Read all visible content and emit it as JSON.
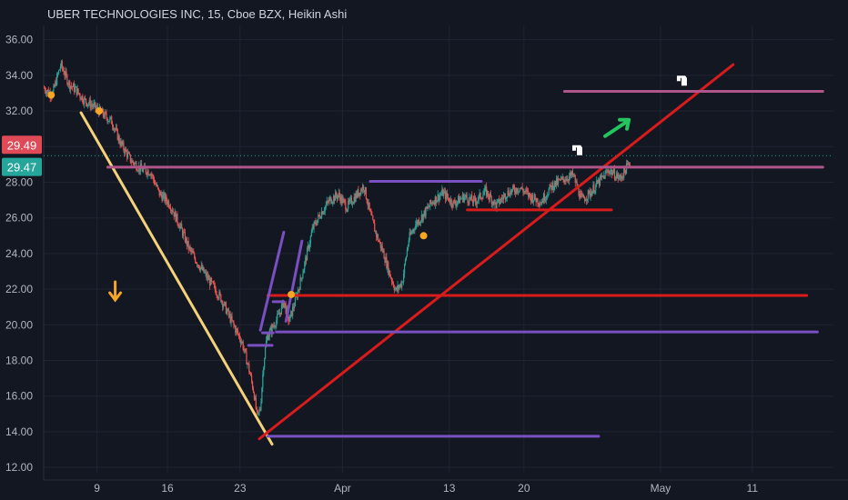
{
  "chart_data": {
    "type": "candlestick",
    "title": "UBER TECHNOLOGIES INC, 15, Cboe BZX, Heikin Ashi",
    "y_ticks": [
      "12.00",
      "14.00",
      "16.00",
      "18.00",
      "20.00",
      "22.00",
      "24.00",
      "26.00",
      "28.00",
      "30.00",
      "32.00",
      "34.00",
      "36.00"
    ],
    "x_ticks": [
      "9",
      "16",
      "23",
      "Apr",
      "13",
      "20",
      "May",
      "11"
    ],
    "ylim": [
      11.7,
      36.8
    ],
    "price_labels": [
      {
        "text": "29.49",
        "value": 29.49,
        "color": "#e04a57"
      },
      {
        "text": "29.47",
        "value": 29.47,
        "color": "#26a69a"
      }
    ],
    "price_path": [
      {
        "t": 0.0,
        "v": 33.3
      },
      {
        "t": 0.8,
        "v": 32.9
      },
      {
        "t": 1.6,
        "v": 34.6
      },
      {
        "t": 2.4,
        "v": 33.5
      },
      {
        "t": 3.0,
        "v": 33.2
      },
      {
        "t": 3.8,
        "v": 32.6
      },
      {
        "t": 4.6,
        "v": 32.3
      },
      {
        "t": 5.4,
        "v": 31.9
      },
      {
        "t": 6.4,
        "v": 31.4
      },
      {
        "t": 7.2,
        "v": 30.2
      },
      {
        "t": 8.2,
        "v": 29.2
      },
      {
        "t": 9.2,
        "v": 28.7
      },
      {
        "t": 10.0,
        "v": 28.6
      },
      {
        "t": 10.8,
        "v": 27.4
      },
      {
        "t": 11.8,
        "v": 26.8
      },
      {
        "t": 12.8,
        "v": 25.5
      },
      {
        "t": 13.6,
        "v": 24.3
      },
      {
        "t": 14.6,
        "v": 23.3
      },
      {
        "t": 15.6,
        "v": 22.4
      },
      {
        "t": 16.6,
        "v": 21.5
      },
      {
        "t": 17.6,
        "v": 20.2
      },
      {
        "t": 18.6,
        "v": 19.0
      },
      {
        "t": 19.2,
        "v": 17.6
      },
      {
        "t": 19.7,
        "v": 16.2
      },
      {
        "t": 20.0,
        "v": 14.8
      },
      {
        "t": 20.3,
        "v": 15.3
      },
      {
        "t": 20.6,
        "v": 17.8
      },
      {
        "t": 20.9,
        "v": 19.3
      },
      {
        "t": 21.4,
        "v": 19.8
      },
      {
        "t": 22.0,
        "v": 20.5
      },
      {
        "t": 22.5,
        "v": 21.3
      },
      {
        "t": 23.0,
        "v": 20.2
      },
      {
        "t": 23.5,
        "v": 21.2
      },
      {
        "t": 24.0,
        "v": 22.3
      },
      {
        "t": 24.6,
        "v": 23.8
      },
      {
        "t": 25.2,
        "v": 25.4
      },
      {
        "t": 26.0,
        "v": 26.3
      },
      {
        "t": 26.8,
        "v": 27.0
      },
      {
        "t": 27.6,
        "v": 27.3
      },
      {
        "t": 28.4,
        "v": 26.6
      },
      {
        "t": 29.2,
        "v": 27.2
      },
      {
        "t": 30.0,
        "v": 27.8
      },
      {
        "t": 30.6,
        "v": 26.2
      },
      {
        "t": 31.2,
        "v": 25.0
      },
      {
        "t": 31.8,
        "v": 24.1
      },
      {
        "t": 32.4,
        "v": 22.9
      },
      {
        "t": 33.0,
        "v": 21.9
      },
      {
        "t": 33.6,
        "v": 22.4
      },
      {
        "t": 34.2,
        "v": 24.8
      },
      {
        "t": 34.8,
        "v": 25.6
      },
      {
        "t": 35.6,
        "v": 26.2
      },
      {
        "t": 36.4,
        "v": 26.9
      },
      {
        "t": 37.4,
        "v": 27.4
      },
      {
        "t": 38.4,
        "v": 26.8
      },
      {
        "t": 39.4,
        "v": 27.2
      },
      {
        "t": 40.4,
        "v": 26.9
      },
      {
        "t": 41.4,
        "v": 27.5
      },
      {
        "t": 42.4,
        "v": 26.7
      },
      {
        "t": 43.4,
        "v": 27.4
      },
      {
        "t": 44.6,
        "v": 27.7
      },
      {
        "t": 45.6,
        "v": 27.2
      },
      {
        "t": 46.6,
        "v": 26.9
      },
      {
        "t": 47.6,
        "v": 27.8
      },
      {
        "t": 48.8,
        "v": 28.2
      },
      {
        "t": 49.6,
        "v": 28.4
      },
      {
        "t": 50.4,
        "v": 27.0
      },
      {
        "t": 51.2,
        "v": 27.4
      },
      {
        "t": 52.0,
        "v": 28.0
      },
      {
        "t": 53.0,
        "v": 28.7
      },
      {
        "t": 54.0,
        "v": 28.2
      },
      {
        "t": 55.0,
        "v": 29.2
      }
    ],
    "series": [],
    "overlays": [
      {
        "kind": "line",
        "color": "#f5d27a",
        "from": [
          3.5,
          31.9
        ],
        "to": [
          21.4,
          13.3
        ]
      },
      {
        "kind": "line",
        "color": "#d81b1b",
        "from": [
          20.2,
          13.6
        ],
        "to": [
          64.6,
          34.6
        ]
      },
      {
        "kind": "hline",
        "color": "#b0558a",
        "from": [
          6.0,
          28.85
        ],
        "to": [
          73.0,
          28.85
        ]
      },
      {
        "kind": "hline",
        "color": "#b0558a",
        "from": [
          48.8,
          33.1
        ],
        "to": [
          73.0,
          33.1
        ]
      },
      {
        "kind": "hline",
        "color": "#d81b1b",
        "from": [
          21.0,
          21.65
        ],
        "to": [
          71.5,
          21.65
        ]
      },
      {
        "kind": "hline",
        "color": "#d81b1b",
        "from": [
          39.7,
          26.45
        ],
        "to": [
          53.2,
          26.45
        ]
      },
      {
        "kind": "hline",
        "color": "#7a4fc2",
        "from": [
          21.8,
          19.6
        ],
        "to": [
          72.5,
          19.6
        ]
      },
      {
        "kind": "hline",
        "color": "#7a4fc2",
        "from": [
          21.0,
          13.75
        ],
        "to": [
          52.0,
          13.75
        ]
      },
      {
        "kind": "hline",
        "color": "#7a4fc2",
        "from": [
          30.6,
          28.05
        ],
        "to": [
          41.0,
          28.05
        ]
      },
      {
        "kind": "hline",
        "color": "#7a4fc2",
        "from": [
          19.2,
          18.85
        ],
        "to": [
          21.4,
          18.85
        ]
      },
      {
        "kind": "hline",
        "color": "#7a4fc2",
        "from": [
          20.5,
          19.55
        ],
        "to": [
          21.5,
          19.55
        ]
      },
      {
        "kind": "hline",
        "color": "#7a4fc2",
        "from": [
          21.5,
          21.3
        ],
        "to": [
          22.5,
          21.3
        ]
      },
      {
        "kind": "line",
        "color": "#7a4fc2",
        "from": [
          20.3,
          19.7
        ],
        "to": [
          22.5,
          25.2
        ]
      },
      {
        "kind": "line",
        "color": "#7a4fc2",
        "from": [
          22.7,
          20.2
        ],
        "to": [
          24.2,
          24.7
        ]
      }
    ],
    "markers": [
      {
        "kind": "dot",
        "color": "#f5a623",
        "at": [
          0.7,
          32.9
        ]
      },
      {
        "kind": "dot",
        "color": "#f5a623",
        "at": [
          5.2,
          32.0
        ]
      },
      {
        "kind": "dot",
        "color": "#f5a623",
        "at": [
          23.2,
          21.7
        ]
      },
      {
        "kind": "dot",
        "color": "#f5a623",
        "at": [
          35.6,
          25.0
        ]
      },
      {
        "kind": "arrow-down",
        "color": "#f5a623",
        "at": [
          6.7,
          21.8
        ]
      },
      {
        "kind": "arrow-up-right",
        "color": "#22c55e",
        "at": [
          53.8,
          31.1
        ]
      },
      {
        "kind": "hand-icon",
        "color": "#ffffff",
        "at": [
          50.0,
          29.8
        ]
      },
      {
        "kind": "hand-icon",
        "color": "#ffffff",
        "at": [
          59.8,
          33.7
        ]
      }
    ],
    "grid": true
  }
}
